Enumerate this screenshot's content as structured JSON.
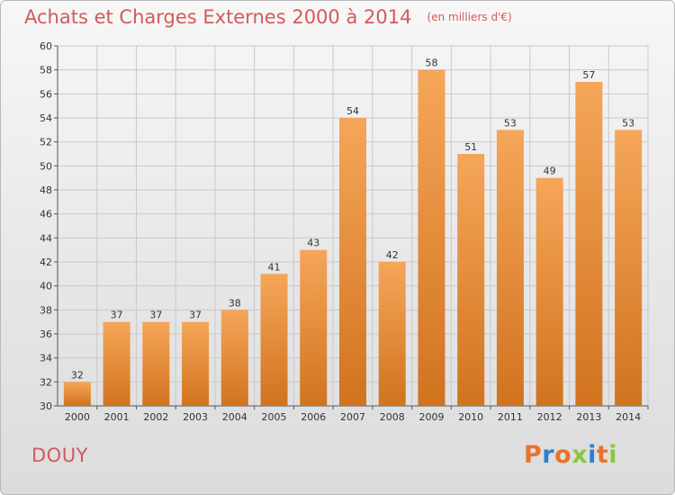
{
  "header": {
    "title": "Achats et Charges Externes 2000 à 2014",
    "unit": "(en milliers d'€)"
  },
  "footer": {
    "commune": "DOUY",
    "brand": "Proxiti",
    "brand_letters": [
      {
        "char": "P",
        "color": "#e8732c"
      },
      {
        "char": "r",
        "color": "#2f7fd1"
      },
      {
        "char": "o",
        "color": "#e8732c"
      },
      {
        "char": "x",
        "color": "#8cc63f"
      },
      {
        "char": "i",
        "color": "#2f7fd1"
      },
      {
        "char": "t",
        "color": "#e8732c"
      },
      {
        "char": "i",
        "color": "#8cc63f"
      }
    ]
  },
  "colors": {
    "bar_top": "#f5a659",
    "bar_bottom": "#d1731f",
    "grid": "#c9c9c9",
    "title": "#d35a5a",
    "text": "#333333"
  },
  "chart_data": {
    "type": "bar",
    "title": "Achats et Charges Externes 2000 à 2014",
    "subtitle": "(en milliers d'€)",
    "categories": [
      "2000",
      "2001",
      "2002",
      "2003",
      "2004",
      "2005",
      "2006",
      "2007",
      "2008",
      "2009",
      "2010",
      "2011",
      "2012",
      "2013",
      "2014"
    ],
    "values": [
      32,
      37,
      37,
      37,
      38,
      41,
      43,
      54,
      42,
      58,
      51,
      53,
      49,
      57,
      53
    ],
    "xlabel": "",
    "ylabel": "",
    "ylim": [
      30,
      60
    ],
    "yticks": [
      30,
      32,
      34,
      36,
      38,
      40,
      42,
      44,
      46,
      48,
      50,
      52,
      54,
      56,
      58,
      60
    ],
    "grid": true,
    "data_labels": true
  }
}
